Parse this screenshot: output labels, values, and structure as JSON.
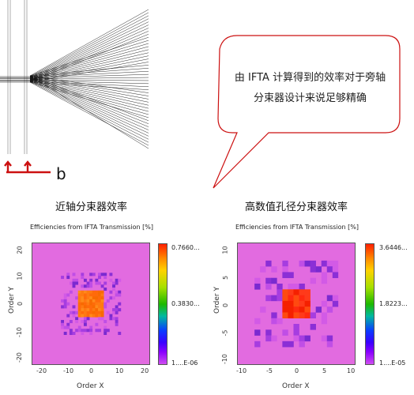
{
  "callout": {
    "line1": "由 IFTA 计算得到的效率对于旁轴",
    "line2": "分束器设计来说足够精确"
  },
  "diagram": {
    "label": "b"
  },
  "panels": [
    {
      "heading": "近轴分束器效率",
      "plot_title": "Efficiencies from IFTA Transmission  [%]",
      "xlabel": "Order X",
      "ylabel": "Order Y",
      "x_ticks": [
        "-20",
        "-10",
        "0",
        "10",
        "20"
      ],
      "y_ticks": [
        "20",
        "10",
        "0",
        "-10",
        "-20"
      ],
      "colorbar": {
        "max": "0.7660...",
        "mid": "0.3830...",
        "min": "1....E-06"
      },
      "accent": "#e26be0"
    },
    {
      "heading": "高数值孔径分束器效率",
      "plot_title": "Efficiencies from IFTA Transmission  [%]",
      "xlabel": "Order X",
      "ylabel": "Order Y",
      "x_ticks": [
        "-10",
        "-5",
        "0",
        "5",
        "10"
      ],
      "y_ticks": [
        "10",
        "5",
        "0",
        "-5",
        "-10"
      ],
      "colorbar": {
        "max": "3.6446...",
        "mid": "1.8223...",
        "min": "1....E-05"
      },
      "accent": "#e26be0"
    }
  ],
  "colors": {
    "arrow_red": "#cc1010",
    "callout_border": "#cc1010",
    "background_magenta": "#e26be0",
    "hot_red": "#ff3a1a",
    "hot_orange": "#ff7a10"
  }
}
